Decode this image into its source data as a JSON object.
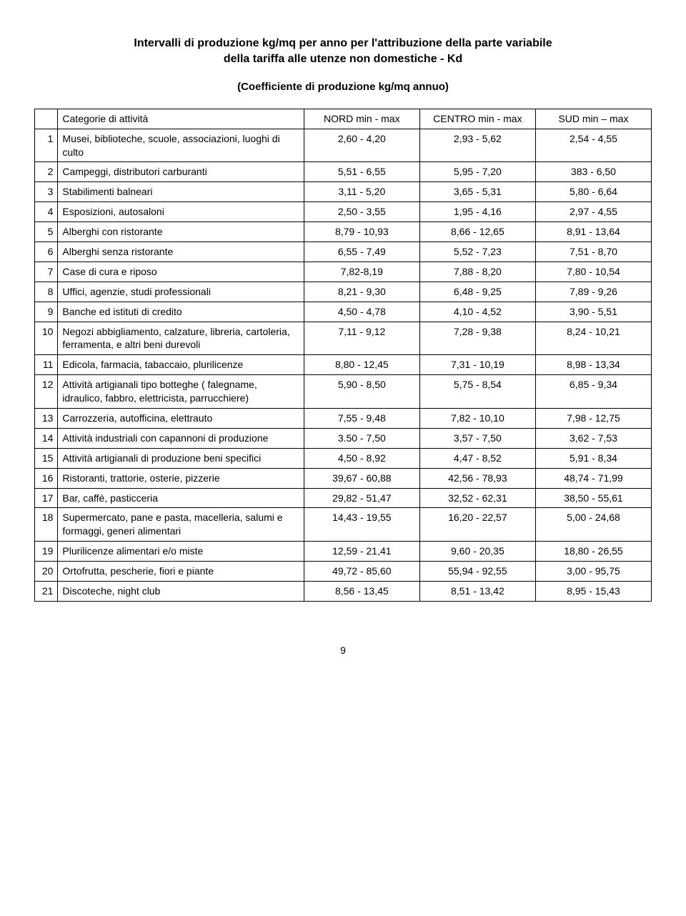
{
  "title_line1": "Intervalli di produzione kg/mq per anno per l'attribuzione della parte variabile",
  "title_line2": "della tariffa alle utenze non domestiche - Kd",
  "subtitle": "(Coefficiente di produzione kg/mq annuo)",
  "header": {
    "categorie": "Categorie di attività",
    "nord": "NORD min - max",
    "centro": "CENTRO min - max",
    "sud": "SUD min – max"
  },
  "rows": [
    {
      "n": "1",
      "desc": "Musei, biblioteche, scuole, associazioni, luoghi di culto",
      "nord": "2,60 - 4,20",
      "centro": "2,93 - 5,62",
      "sud": "2,54 - 4,55"
    },
    {
      "n": "2",
      "desc": "Campeggi, distributori carburanti",
      "nord": "5,51 - 6,55",
      "centro": "5,95 - 7,20",
      "sud": "383 - 6,50"
    },
    {
      "n": "3",
      "desc": "Stabilimenti balneari",
      "nord": "3,11 - 5,20",
      "centro": "3,65 - 5,31",
      "sud": "5,80 - 6,64"
    },
    {
      "n": "4",
      "desc": "Esposizioni, autosaloni",
      "nord": "2,50 - 3,55",
      "centro": "1,95 - 4,16",
      "sud": "2,97 - 4,55"
    },
    {
      "n": "5",
      "desc": "Alberghi con ristorante",
      "nord": "8,79 - 10,93",
      "centro": "8,66 - 12,65",
      "sud": "8,91 - 13,64"
    },
    {
      "n": "6",
      "desc": "Alberghi senza ristorante",
      "nord": "6,55 - 7,49",
      "centro": "5,52 - 7,23",
      "sud": "7,51 - 8,70"
    },
    {
      "n": "7",
      "desc": "Case di cura e riposo",
      "nord": "7,82-8,19",
      "centro": "7,88 - 8,20",
      "sud": "7,80 - 10,54"
    },
    {
      "n": "8",
      "desc": "Uffici, agenzie, studi professionali",
      "nord": "8,21 - 9,30",
      "centro": "6,48 - 9,25",
      "sud": "7,89 - 9,26"
    },
    {
      "n": "9",
      "desc": "Banche ed istituti di credito",
      "nord": "4,50 - 4,78",
      "centro": "4,10 - 4,52",
      "sud": "3,90 - 5,51"
    },
    {
      "n": "10",
      "desc": "Negozi abbigliamento, calzature, libreria, cartoleria, ferramenta, e altri beni durevoli",
      "nord": "7,11 - 9,12",
      "centro": "7,28 - 9,38",
      "sud": "8,24 - 10,21"
    },
    {
      "n": "11",
      "desc": "Edicola, farmacia, tabaccaio, plurilicenze",
      "nord": "8,80 - 12,45",
      "centro": "7,31 - 10,19",
      "sud": "8,98 - 13,34"
    },
    {
      "n": "12",
      "desc": "Attività artigianali tipo botteghe ( falegname, idraulico, fabbro, elettricista, parrucchiere)",
      "nord": "5,90 - 8,50",
      "centro": "5,75 - 8,54",
      "sud": "6,85 - 9,34"
    },
    {
      "n": "13",
      "desc": "Carrozzeria, autofficina, elettrauto",
      "nord": "7,55 - 9,48",
      "centro": "7,82 - 10,10",
      "sud": "7,98 - 12,75"
    },
    {
      "n": "14",
      "desc": "Attività industriali con capannoni di produzione",
      "nord": "3.50 - 7,50",
      "centro": "3,57 - 7,50",
      "sud": "3,62 - 7,53"
    },
    {
      "n": "15",
      "desc": "Attività artigianali di produzione beni specifici",
      "nord": "4,50 - 8,92",
      "centro": "4,47 - 8,52",
      "sud": "5,91 - 8,34"
    },
    {
      "n": "16",
      "desc": "Ristoranti, trattorie, osterie, pizzerie",
      "nord": "39,67 - 60,88",
      "centro": "42,56 - 78,93",
      "sud": "48,74 - 71,99"
    },
    {
      "n": "17",
      "desc": "Bar, caffè, pasticceria",
      "nord": "29,82 - 51,47",
      "centro": "32,52 - 62,31",
      "sud": "38,50 - 55,61"
    },
    {
      "n": "18",
      "desc": "Supermercato, pane e pasta, macelleria, salumi e formaggi, generi alimentari",
      "nord": "14,43 - 19,55",
      "centro": "16,20 - 22,57",
      "sud": "5,00 - 24,68"
    },
    {
      "n": "19",
      "desc": "Plurilicenze alimentari e/o miste",
      "nord": "12,59 - 21,41",
      "centro": "9,60 - 20,35",
      "sud": "18,80 - 26,55"
    },
    {
      "n": "20",
      "desc": "Ortofrutta, pescherie, fiori e piante",
      "nord": "49,72 - 85,60",
      "centro": "55,94 - 92,55",
      "sud": "3,00 - 95,75"
    },
    {
      "n": "21",
      "desc": "Discoteche, night club",
      "nord": "8,56 - 13,45",
      "centro": "8,51 - 13,42",
      "sud": "8,95 - 15,43"
    }
  ],
  "page_number": "9"
}
